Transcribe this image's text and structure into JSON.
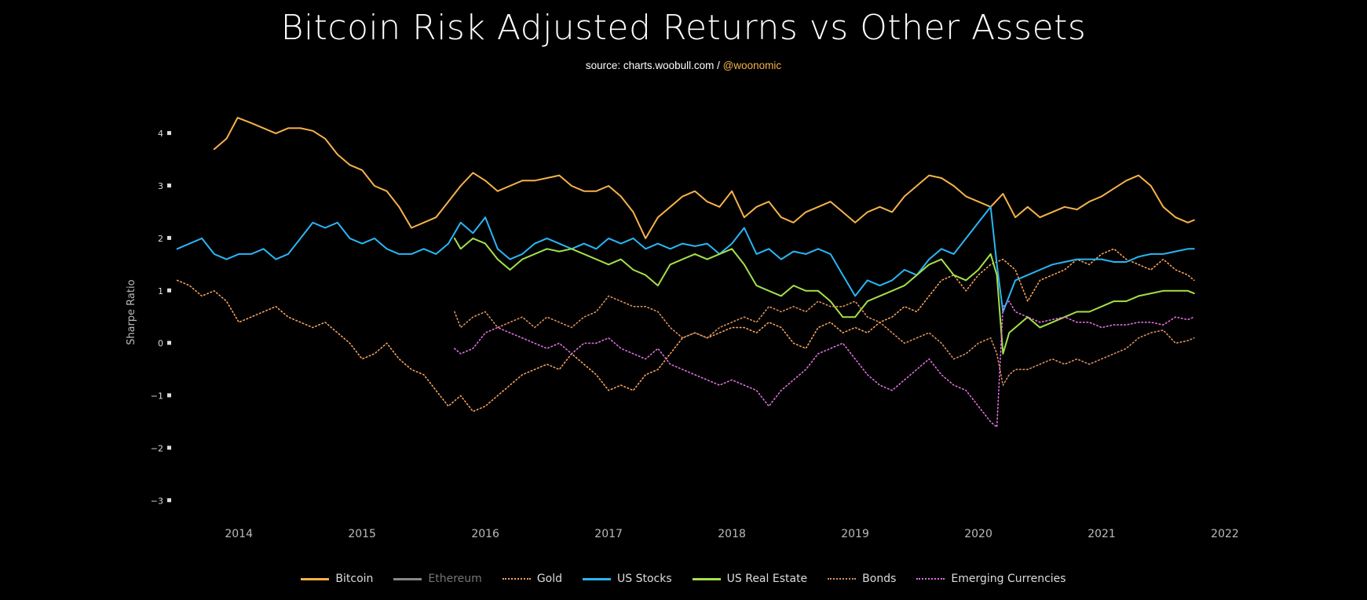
{
  "chart_data": {
    "type": "line",
    "title": "Bitcoin Risk Adjusted Returns vs Other Assets",
    "subtitle_source": "source: charts.woobull.com / ",
    "subtitle_handle": "@woonomic",
    "xlabel": "",
    "ylabel": "Sharpe Ratio",
    "xlim": [
      2013.4,
      2022.0
    ],
    "ylim": [
      -3.4,
      4.6
    ],
    "x_ticks": [
      "2014",
      "2015",
      "2016",
      "2017",
      "2018",
      "2019",
      "2020",
      "2021",
      "2022"
    ],
    "y_ticks": [
      "4",
      "3",
      "2",
      "1",
      "0",
      "−1",
      "−2",
      "−3"
    ],
    "series": [
      {
        "name": "Bitcoin",
        "color": "#f7b24a",
        "dash": "solid",
        "visible": true,
        "x": [
          2013.8,
          2013.9,
          2013.99,
          2014.1,
          2014.2,
          2014.3,
          2014.4,
          2014.5,
          2014.6,
          2014.7,
          2014.8,
          2014.9,
          2015.0,
          2015.1,
          2015.2,
          2015.3,
          2015.4,
          2015.5,
          2015.6,
          2015.7,
          2015.8,
          2015.9,
          2016.0,
          2016.1,
          2016.2,
          2016.3,
          2016.4,
          2016.5,
          2016.6,
          2016.7,
          2016.8,
          2016.9,
          2017.0,
          2017.1,
          2017.2,
          2017.3,
          2017.4,
          2017.5,
          2017.6,
          2017.7,
          2017.8,
          2017.9,
          2018.0,
          2018.1,
          2018.2,
          2018.3,
          2018.4,
          2018.5,
          2018.6,
          2018.7,
          2018.8,
          2018.9,
          2019.0,
          2019.1,
          2019.2,
          2019.3,
          2019.4,
          2019.5,
          2019.6,
          2019.7,
          2019.8,
          2019.9,
          2020.0,
          2020.1,
          2020.2,
          2020.3,
          2020.4,
          2020.5,
          2020.6,
          2020.7,
          2020.8,
          2020.9,
          2021.0,
          2021.1,
          2021.2,
          2021.3,
          2021.4,
          2021.5,
          2021.6,
          2021.7,
          2021.75
        ],
        "y": [
          3.7,
          3.9,
          4.3,
          4.2,
          4.1,
          4.0,
          4.1,
          4.1,
          4.05,
          3.9,
          3.6,
          3.4,
          3.3,
          3.0,
          2.9,
          2.6,
          2.2,
          2.3,
          2.4,
          2.7,
          3.0,
          3.25,
          3.1,
          2.9,
          3.0,
          3.1,
          3.1,
          3.15,
          3.2,
          3.0,
          2.9,
          2.9,
          3.0,
          2.8,
          2.5,
          2.0,
          2.4,
          2.6,
          2.8,
          2.9,
          2.7,
          2.6,
          2.9,
          2.4,
          2.6,
          2.7,
          2.4,
          2.3,
          2.5,
          2.6,
          2.7,
          2.5,
          2.3,
          2.5,
          2.6,
          2.5,
          2.8,
          3.0,
          3.2,
          3.15,
          3.0,
          2.8,
          2.7,
          2.6,
          2.85,
          2.4,
          2.6,
          2.4,
          2.5,
          2.6,
          2.55,
          2.7,
          2.8,
          2.95,
          3.1,
          3.2,
          3.0,
          2.6,
          2.4,
          2.3,
          2.35
        ]
      },
      {
        "name": "Ethereum",
        "color": "#bbbbbb",
        "dash": "solid",
        "visible": false,
        "x": [],
        "y": []
      },
      {
        "name": "Gold",
        "color": "#f7a35c",
        "dash": "dot",
        "visible": true,
        "x": [
          2013.5,
          2013.6,
          2013.7,
          2013.8,
          2013.9,
          2014.0,
          2014.1,
          2014.2,
          2014.3,
          2014.4,
          2014.5,
          2014.6,
          2014.7,
          2014.8,
          2014.9,
          2015.0,
          2015.1,
          2015.2,
          2015.3,
          2015.4,
          2015.5,
          2015.6,
          2015.7,
          2015.8,
          2015.9,
          2016.0,
          2016.1,
          2016.2,
          2016.3,
          2016.4,
          2016.5,
          2016.6,
          2016.7,
          2016.8,
          2016.9,
          2017.0,
          2017.1,
          2017.2,
          2017.3,
          2017.4,
          2017.5,
          2017.6,
          2017.7,
          2017.8,
          2017.9,
          2018.0,
          2018.1,
          2018.2,
          2018.3,
          2018.4,
          2018.5,
          2018.6,
          2018.7,
          2018.8,
          2018.9,
          2019.0,
          2019.1,
          2019.2,
          2019.3,
          2019.4,
          2019.5,
          2019.6,
          2019.7,
          2019.8,
          2019.9,
          2020.0,
          2020.1,
          2020.2,
          2020.3,
          2020.4,
          2020.5,
          2020.6,
          2020.7,
          2020.8,
          2020.9,
          2021.0,
          2021.1,
          2021.2,
          2021.3,
          2021.4,
          2021.5,
          2021.6,
          2021.7,
          2021.75
        ],
        "y": [
          1.2,
          1.1,
          0.9,
          1.0,
          0.8,
          0.4,
          0.5,
          0.6,
          0.7,
          0.5,
          0.4,
          0.3,
          0.4,
          0.2,
          0.0,
          -0.3,
          -0.2,
          0.0,
          -0.3,
          -0.5,
          -0.6,
          -0.9,
          -1.2,
          -1.0,
          -1.3,
          -1.2,
          -1.0,
          -0.8,
          -0.6,
          -0.5,
          -0.4,
          -0.5,
          -0.2,
          -0.4,
          -0.6,
          -0.9,
          -0.8,
          -0.9,
          -0.6,
          -0.5,
          -0.2,
          0.1,
          0.2,
          0.1,
          0.2,
          0.3,
          0.3,
          0.2,
          0.4,
          0.3,
          0.0,
          -0.1,
          0.3,
          0.4,
          0.2,
          0.3,
          0.2,
          0.4,
          0.5,
          0.7,
          0.6,
          0.9,
          1.2,
          1.3,
          1.0,
          1.3,
          1.5,
          1.6,
          1.4,
          0.8,
          1.2,
          1.3,
          1.4,
          1.6,
          1.5,
          1.7,
          1.8,
          1.6,
          1.5,
          1.4,
          1.6,
          1.4,
          1.3,
          1.2
        ]
      },
      {
        "name": "US Stocks",
        "color": "#29b6f6",
        "dash": "solid",
        "visible": true,
        "x": [
          2013.5,
          2013.6,
          2013.7,
          2013.8,
          2013.9,
          2014.0,
          2014.1,
          2014.2,
          2014.3,
          2014.4,
          2014.5,
          2014.6,
          2014.7,
          2014.8,
          2014.9,
          2015.0,
          2015.1,
          2015.2,
          2015.3,
          2015.4,
          2015.5,
          2015.6,
          2015.7,
          2015.8,
          2015.9,
          2016.0,
          2016.1,
          2016.2,
          2016.3,
          2016.4,
          2016.5,
          2016.6,
          2016.7,
          2016.8,
          2016.9,
          2017.0,
          2017.1,
          2017.2,
          2017.3,
          2017.4,
          2017.5,
          2017.6,
          2017.7,
          2017.8,
          2017.9,
          2018.0,
          2018.1,
          2018.2,
          2018.3,
          2018.4,
          2018.5,
          2018.6,
          2018.7,
          2018.8,
          2018.9,
          2019.0,
          2019.1,
          2019.2,
          2019.3,
          2019.4,
          2019.5,
          2019.6,
          2019.7,
          2019.8,
          2019.9,
          2020.0,
          2020.1,
          2020.15,
          2020.2,
          2020.25,
          2020.3,
          2020.4,
          2020.5,
          2020.6,
          2020.7,
          2020.8,
          2020.9,
          2021.0,
          2021.1,
          2021.2,
          2021.3,
          2021.4,
          2021.5,
          2021.6,
          2021.7,
          2021.75
        ],
        "y": [
          1.8,
          1.9,
          2.0,
          1.7,
          1.6,
          1.7,
          1.7,
          1.8,
          1.6,
          1.7,
          2.0,
          2.3,
          2.2,
          2.3,
          2.0,
          1.9,
          2.0,
          1.8,
          1.7,
          1.7,
          1.8,
          1.7,
          1.9,
          2.3,
          2.1,
          2.4,
          1.8,
          1.6,
          1.7,
          1.9,
          2.0,
          1.9,
          1.8,
          1.9,
          1.8,
          2.0,
          1.9,
          2.0,
          1.8,
          1.9,
          1.8,
          1.9,
          1.85,
          1.9,
          1.7,
          1.9,
          2.2,
          1.7,
          1.8,
          1.6,
          1.75,
          1.7,
          1.8,
          1.7,
          1.3,
          0.9,
          1.2,
          1.1,
          1.2,
          1.4,
          1.3,
          1.6,
          1.8,
          1.7,
          2.0,
          2.3,
          2.6,
          1.5,
          0.6,
          0.9,
          1.2,
          1.3,
          1.4,
          1.5,
          1.55,
          1.6,
          1.6,
          1.6,
          1.55,
          1.55,
          1.65,
          1.7,
          1.7,
          1.75,
          1.8,
          1.8
        ]
      },
      {
        "name": "US Real Estate",
        "color": "#a4e04a",
        "dash": "solid",
        "visible": true,
        "x": [
          2015.75,
          2015.8,
          2015.9,
          2016.0,
          2016.1,
          2016.2,
          2016.3,
          2016.4,
          2016.5,
          2016.6,
          2016.7,
          2016.8,
          2016.9,
          2017.0,
          2017.1,
          2017.2,
          2017.3,
          2017.4,
          2017.5,
          2017.6,
          2017.7,
          2017.8,
          2017.9,
          2018.0,
          2018.1,
          2018.2,
          2018.3,
          2018.4,
          2018.5,
          2018.6,
          2018.7,
          2018.8,
          2018.9,
          2019.0,
          2019.1,
          2019.2,
          2019.3,
          2019.4,
          2019.5,
          2019.6,
          2019.7,
          2019.8,
          2019.9,
          2020.0,
          2020.1,
          2020.15,
          2020.2,
          2020.25,
          2020.3,
          2020.4,
          2020.5,
          2020.6,
          2020.7,
          2020.8,
          2020.9,
          2021.0,
          2021.1,
          2021.2,
          2021.3,
          2021.4,
          2021.5,
          2021.6,
          2021.7,
          2021.75
        ],
        "y": [
          2.0,
          1.8,
          2.0,
          1.9,
          1.6,
          1.4,
          1.6,
          1.7,
          1.8,
          1.75,
          1.8,
          1.7,
          1.6,
          1.5,
          1.6,
          1.4,
          1.3,
          1.1,
          1.5,
          1.6,
          1.7,
          1.6,
          1.7,
          1.8,
          1.5,
          1.1,
          1.0,
          0.9,
          1.1,
          1.0,
          1.0,
          0.8,
          0.5,
          0.5,
          0.8,
          0.9,
          1.0,
          1.1,
          1.3,
          1.5,
          1.6,
          1.3,
          1.2,
          1.4,
          1.7,
          1.3,
          -0.2,
          0.2,
          0.3,
          0.5,
          0.3,
          0.4,
          0.5,
          0.6,
          0.6,
          0.7,
          0.8,
          0.8,
          0.9,
          0.95,
          1.0,
          1.0,
          1.0,
          0.95
        ]
      },
      {
        "name": "Bonds",
        "color": "#d9915f",
        "dash": "dot",
        "visible": true,
        "x": [
          2015.75,
          2015.8,
          2015.9,
          2016.0,
          2016.1,
          2016.2,
          2016.3,
          2016.4,
          2016.5,
          2016.6,
          2016.7,
          2016.8,
          2016.9,
          2017.0,
          2017.1,
          2017.2,
          2017.3,
          2017.4,
          2017.5,
          2017.6,
          2017.7,
          2017.8,
          2017.9,
          2018.0,
          2018.1,
          2018.2,
          2018.3,
          2018.4,
          2018.5,
          2018.6,
          2018.7,
          2018.8,
          2018.9,
          2019.0,
          2019.1,
          2019.2,
          2019.3,
          2019.4,
          2019.5,
          2019.6,
          2019.7,
          2019.8,
          2019.9,
          2020.0,
          2020.1,
          2020.15,
          2020.2,
          2020.25,
          2020.3,
          2020.4,
          2020.5,
          2020.6,
          2020.7,
          2020.8,
          2020.9,
          2021.0,
          2021.1,
          2021.2,
          2021.3,
          2021.4,
          2021.5,
          2021.6,
          2021.7,
          2021.75
        ],
        "y": [
          0.6,
          0.3,
          0.5,
          0.6,
          0.3,
          0.4,
          0.5,
          0.3,
          0.5,
          0.4,
          0.3,
          0.5,
          0.6,
          0.9,
          0.8,
          0.7,
          0.7,
          0.6,
          0.3,
          0.1,
          0.2,
          0.1,
          0.3,
          0.4,
          0.5,
          0.4,
          0.7,
          0.6,
          0.7,
          0.6,
          0.8,
          0.7,
          0.7,
          0.8,
          0.5,
          0.4,
          0.2,
          0.0,
          0.1,
          0.2,
          0.0,
          -0.3,
          -0.2,
          0.0,
          0.1,
          -0.2,
          -0.8,
          -0.6,
          -0.5,
          -0.5,
          -0.4,
          -0.3,
          -0.4,
          -0.3,
          -0.4,
          -0.3,
          -0.2,
          -0.1,
          0.1,
          0.2,
          0.25,
          0.0,
          0.05,
          0.1
        ]
      },
      {
        "name": "Emerging Currencies",
        "color": "#e070e0",
        "dash": "dot",
        "visible": true,
        "x": [
          2015.75,
          2015.8,
          2015.9,
          2016.0,
          2016.1,
          2016.2,
          2016.3,
          2016.4,
          2016.5,
          2016.6,
          2016.7,
          2016.8,
          2016.9,
          2017.0,
          2017.1,
          2017.2,
          2017.3,
          2017.4,
          2017.5,
          2017.6,
          2017.7,
          2017.8,
          2017.9,
          2018.0,
          2018.1,
          2018.2,
          2018.3,
          2018.4,
          2018.5,
          2018.6,
          2018.7,
          2018.8,
          2018.9,
          2019.0,
          2019.1,
          2019.2,
          2019.3,
          2019.4,
          2019.5,
          2019.6,
          2019.7,
          2019.8,
          2019.9,
          2020.0,
          2020.1,
          2020.15,
          2020.2,
          2020.25,
          2020.3,
          2020.4,
          2020.5,
          2020.6,
          2020.7,
          2020.8,
          2020.9,
          2021.0,
          2021.1,
          2021.2,
          2021.3,
          2021.4,
          2021.5,
          2021.6,
          2021.7,
          2021.75
        ],
        "y": [
          -0.1,
          -0.2,
          -0.1,
          0.2,
          0.3,
          0.2,
          0.1,
          0.0,
          -0.1,
          0.0,
          -0.2,
          0.0,
          0.0,
          0.1,
          -0.1,
          -0.2,
          -0.3,
          -0.1,
          -0.4,
          -0.5,
          -0.6,
          -0.7,
          -0.8,
          -0.7,
          -0.8,
          -0.9,
          -1.2,
          -0.9,
          -0.7,
          -0.5,
          -0.2,
          -0.1,
          0.0,
          -0.3,
          -0.6,
          -0.8,
          -0.9,
          -0.7,
          -0.5,
          -0.3,
          -0.6,
          -0.8,
          -0.9,
          -1.2,
          -1.5,
          -1.6,
          0.7,
          0.8,
          0.6,
          0.5,
          0.4,
          0.45,
          0.5,
          0.4,
          0.4,
          0.3,
          0.35,
          0.35,
          0.4,
          0.4,
          0.35,
          0.5,
          0.45,
          0.5
        ]
      }
    ]
  }
}
